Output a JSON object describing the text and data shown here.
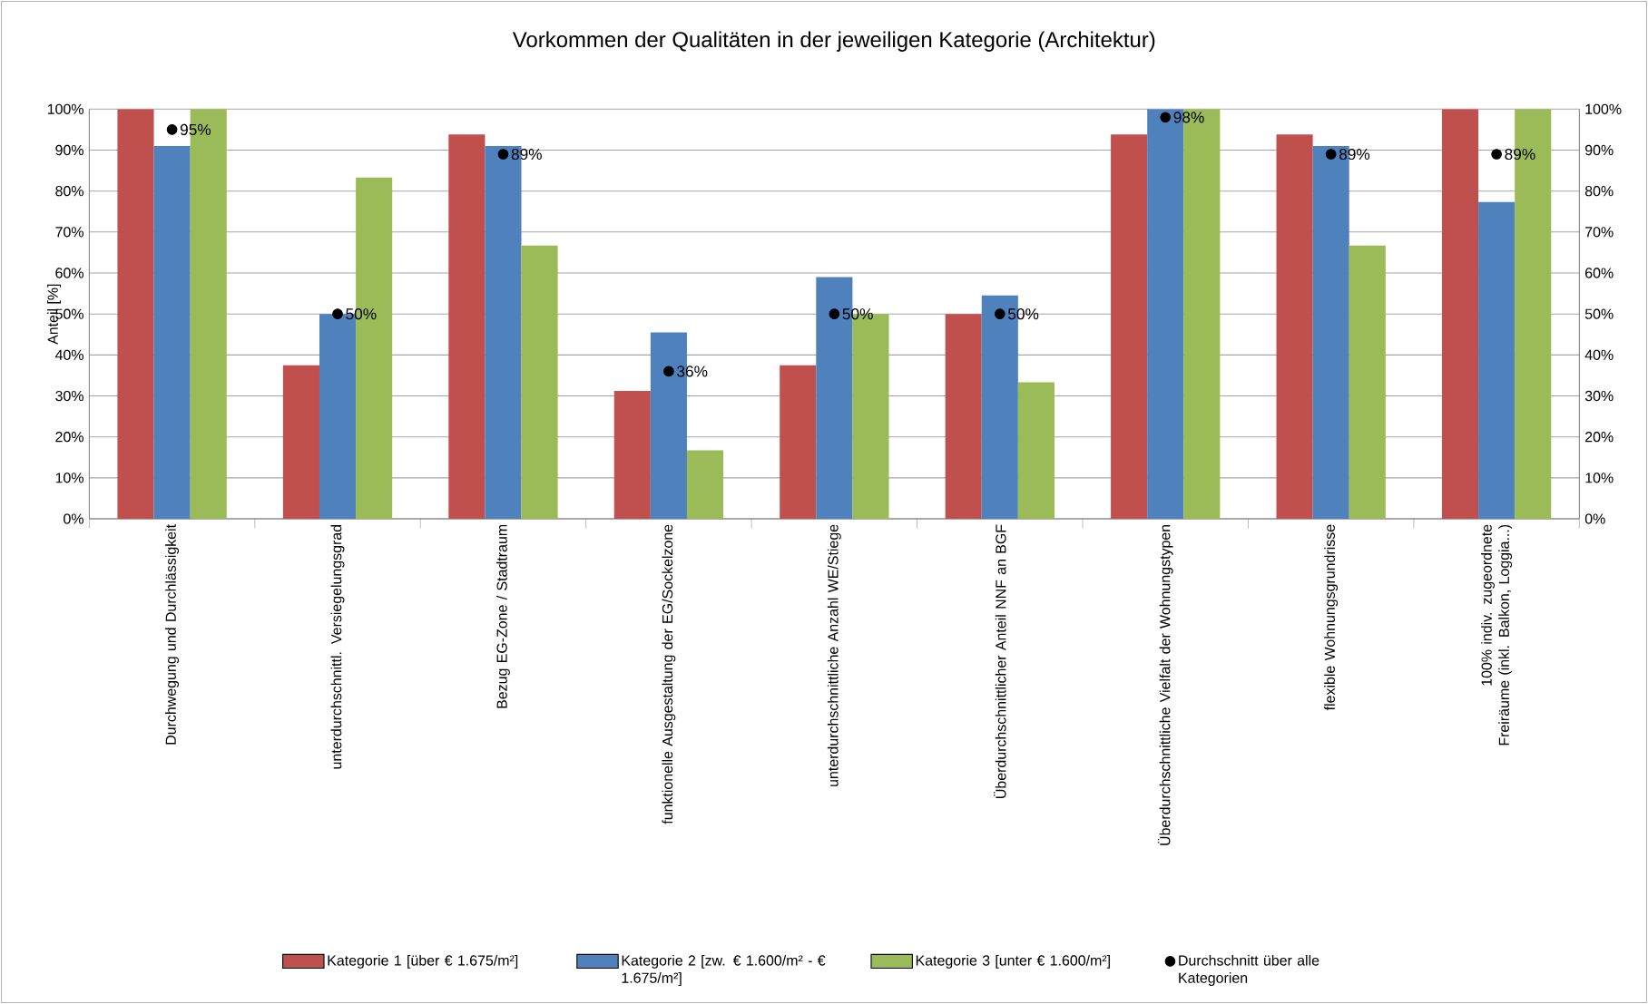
{
  "chart_data": {
    "type": "bar",
    "title": "Vorkommen der Qualitäten in der jeweiligen Kategorie (Architektur)",
    "ylabel": "Anteil [%]",
    "categories": [
      "Durchwegung und Durchlässigkeit",
      "unterdurchschnittl.  Versiegelungsgrad",
      "Bezug EG-Zone  / Stadtraum",
      "funktionelle Ausgestaltung der EG/Sockelzone",
      "unterdurchschnittliche  Anzahl WE/Stiege",
      "Überdurchschnittlicher  Anteil NNF an BGF",
      "Überdurchschnittliche  Vielfalt der Wohnungstypen",
      "flexible Wohnungsgrundrisse",
      "100% indiv. zugeordnete  Freiräume  (inkl. Balkon, Loggia...)"
    ],
    "series": [
      {
        "name": "Kategorie 1 [über € 1.675/m²]",
        "color": "#c0504d",
        "values": [
          100,
          37.5,
          93.8,
          31.2,
          37.5,
          50,
          93.8,
          93.8,
          100
        ]
      },
      {
        "name": "Kategorie 2 [zw. € 1.600/m² - € 1.675/m²]",
        "color": "#4f81bd",
        "values": [
          91,
          50,
          91,
          45.5,
          59,
          54.5,
          100,
          91,
          77.3
        ]
      },
      {
        "name": "Kategorie 3 [unter € 1.600/m²]",
        "color": "#9bbb59",
        "values": [
          100,
          83.3,
          66.7,
          16.7,
          50,
          33.3,
          100,
          66.7,
          100
        ]
      },
      {
        "name": "Durchschnitt über alle Kategorien",
        "type": "scatter",
        "marker": "circle",
        "color": "#000000",
        "values": [
          95,
          50,
          89,
          36,
          50,
          50,
          98,
          89,
          89
        ],
        "value_labels": [
          "95%",
          "50%",
          "89%",
          "36%",
          "50%",
          "50%",
          "98%",
          "89%",
          "89%"
        ]
      }
    ],
    "ylim": [
      0,
      100
    ],
    "yticks": [
      {
        "value": 0,
        "label": "0%"
      },
      {
        "value": 10,
        "label": "10%"
      },
      {
        "value": 20,
        "label": "20%"
      },
      {
        "value": 30,
        "label": "30%"
      },
      {
        "value": 40,
        "label": "40%"
      },
      {
        "value": 50,
        "label": "50%"
      },
      {
        "value": 60,
        "label": "60%"
      },
      {
        "value": 70,
        "label": "70%"
      },
      {
        "value": 80,
        "label": "80%"
      },
      {
        "value": 90,
        "label": "90%"
      },
      {
        "value": 100,
        "label": "100%"
      }
    ],
    "y2lim": [
      0,
      100
    ],
    "y2ticks": [
      {
        "value": 0,
        "label": "0%"
      },
      {
        "value": 10,
        "label": "10%"
      },
      {
        "value": 20,
        "label": "20%"
      },
      {
        "value": 30,
        "label": "30%"
      },
      {
        "value": 40,
        "label": "40%"
      },
      {
        "value": 50,
        "label": "50%"
      },
      {
        "value": 60,
        "label": "60%"
      },
      {
        "value": 70,
        "label": "70%"
      },
      {
        "value": 80,
        "label": "80%"
      },
      {
        "value": 90,
        "label": "90%"
      },
      {
        "value": 100,
        "label": "100%"
      }
    ],
    "grid": "y",
    "legend": "bottom"
  }
}
